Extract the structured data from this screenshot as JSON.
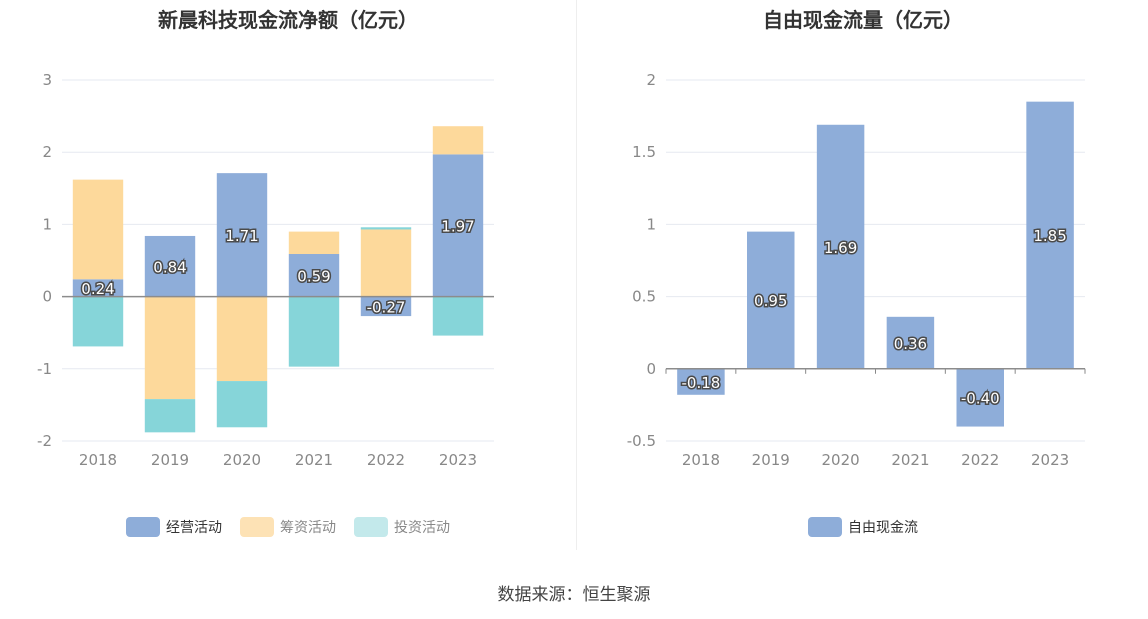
{
  "source_label": "数据来源：恒生聚源",
  "chart_data": [
    {
      "type": "bar",
      "stacked": true,
      "title": "新晨科技现金流净额（亿元）",
      "categories": [
        "2018",
        "2019",
        "2020",
        "2021",
        "2022",
        "2023"
      ],
      "ylim": [
        -2,
        3
      ],
      "yticks": [
        -2,
        -1,
        0,
        1,
        2,
        3
      ],
      "grid": true,
      "legend_position": "bottom",
      "series": [
        {
          "name": "经营活动",
          "color": "#8eadd9",
          "values": [
            0.24,
            0.84,
            1.71,
            0.59,
            -0.27,
            1.97
          ]
        },
        {
          "name": "筹资活动",
          "color": "#fdd99b",
          "values": [
            1.38,
            -1.42,
            -1.17,
            0.31,
            0.93,
            0.39
          ]
        },
        {
          "name": "投资活动",
          "color": "#86d5d9",
          "values": [
            -0.69,
            -0.46,
            -0.64,
            -0.97,
            0.03,
            -0.54
          ]
        }
      ],
      "data_labels": [
        "0.24",
        "0.84",
        "1.71",
        "0.59",
        "-0.27",
        "1.97"
      ]
    },
    {
      "type": "bar",
      "title": "自由现金流量（亿元）",
      "categories": [
        "2018",
        "2019",
        "2020",
        "2021",
        "2022",
        "2023"
      ],
      "ylim": [
        -0.5,
        2
      ],
      "yticks": [
        -0.5,
        0,
        0.5,
        1,
        1.5,
        2
      ],
      "grid": true,
      "legend_position": "bottom",
      "series": [
        {
          "name": "自由现金流",
          "color": "#8eadd9",
          "values": [
            -0.18,
            0.95,
            1.69,
            0.36,
            -0.4,
            1.85
          ]
        }
      ],
      "data_labels": [
        "-0.18",
        "0.95",
        "1.69",
        "0.36",
        "-0.40",
        "1.85"
      ]
    }
  ]
}
